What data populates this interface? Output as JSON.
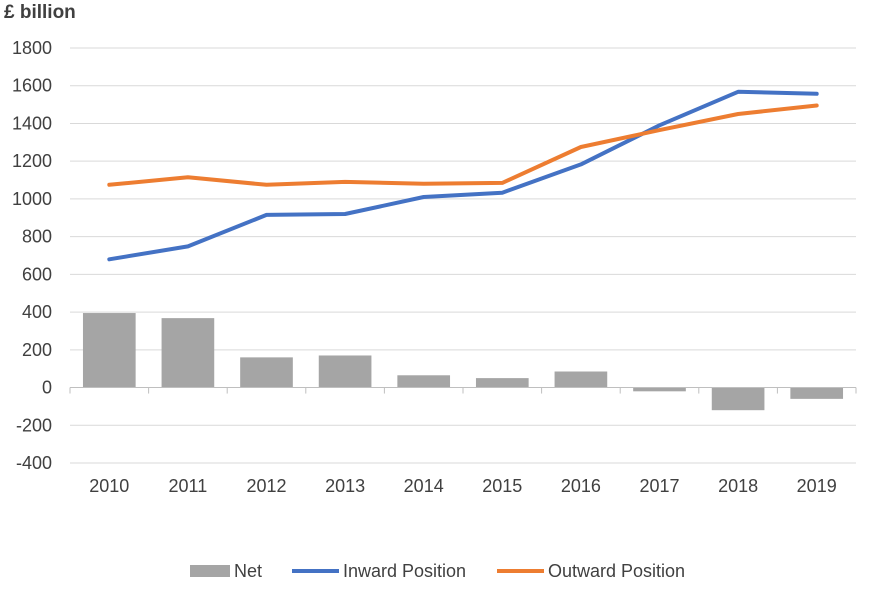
{
  "chart_data": {
    "type": "bar+line",
    "unit_label": "£ billion",
    "categories": [
      "2010",
      "2011",
      "2012",
      "2013",
      "2014",
      "2015",
      "2016",
      "2017",
      "2018",
      "2019"
    ],
    "y_ticks": [
      "1800",
      "1600",
      "1400",
      "1200",
      "1000",
      "800",
      "600",
      "400",
      "200",
      "0",
      "-200",
      "-400"
    ],
    "ylim": [
      -400,
      1800
    ],
    "grid": true,
    "legend_position": "bottom",
    "series": [
      {
        "name": "Net",
        "type": "bar",
        "color": "#a5a5a5",
        "values": [
          395,
          368,
          160,
          170,
          65,
          50,
          85,
          -20,
          -120,
          -60
        ]
      },
      {
        "name": "Inward Position",
        "type": "line",
        "color": "#4472c4",
        "values": [
          680,
          748,
          915,
          920,
          1010,
          1033,
          1183,
          1390,
          1568,
          1557
        ]
      },
      {
        "name": "Outward Position",
        "type": "line",
        "color": "#ed7d31",
        "values": [
          1075,
          1115,
          1075,
          1090,
          1080,
          1085,
          1275,
          1365,
          1450,
          1495
        ]
      }
    ]
  }
}
